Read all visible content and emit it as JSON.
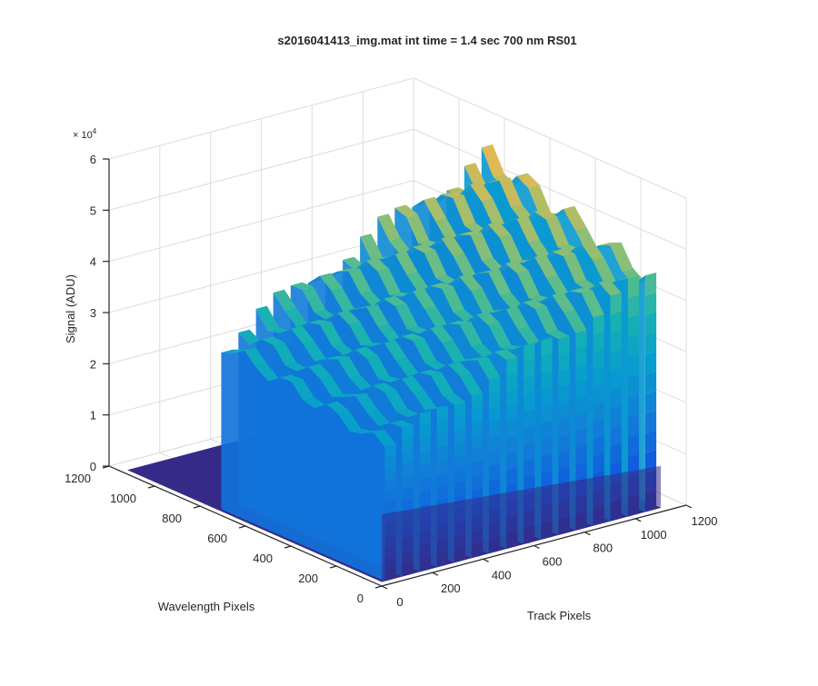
{
  "chart_data": {
    "type": "surface",
    "title": "s2016041413_img.mat int time = 1.4 sec  700 nm RS01",
    "xlabel": "Track Pixels",
    "ylabel": "Wavelength Pixels",
    "zlabel": "Signal (ADU)",
    "xlim": [
      0,
      1200
    ],
    "ylim": [
      0,
      1200
    ],
    "zlim": [
      0,
      60000
    ],
    "grid": true,
    "colormap": "parula",
    "x_ticks": [
      0,
      200,
      400,
      600,
      800,
      1000,
      1200
    ],
    "y_ticks": [
      0,
      200,
      400,
      600,
      800,
      1000,
      1200
    ],
    "z_ticks": [
      0,
      1,
      2,
      3,
      4,
      5,
      6
    ],
    "z_tick_labels": [
      "0",
      "1",
      "2",
      "3",
      "4",
      "5",
      "6"
    ],
    "z_exponent_label": "× 10",
    "z_exponent_power": "4",
    "surface": {
      "baseline_signal": 800,
      "track_extent": [
        0,
        1100
      ],
      "illuminated_wavelength_range": [
        0,
        720
      ],
      "ridge_count": 16,
      "ridges": [
        {
          "track": 34,
          "peak": 33000
        },
        {
          "track": 102,
          "peak": 35000
        },
        {
          "track": 171,
          "peak": 37000
        },
        {
          "track": 239,
          "peak": 38500
        },
        {
          "track": 308,
          "peak": 40000
        },
        {
          "track": 376,
          "peak": 41500
        },
        {
          "track": 444,
          "peak": 43000
        },
        {
          "track": 513,
          "peak": 44500
        },
        {
          "track": 581,
          "peak": 46000
        },
        {
          "track": 650,
          "peak": 47500
        },
        {
          "track": 718,
          "peak": 49000
        },
        {
          "track": 786,
          "peak": 50500
        },
        {
          "track": 855,
          "peak": 52000
        },
        {
          "track": 923,
          "peak": 53500
        },
        {
          "track": 992,
          "peak": 55000
        },
        {
          "track": 1060,
          "peak": 55500
        }
      ]
    }
  }
}
